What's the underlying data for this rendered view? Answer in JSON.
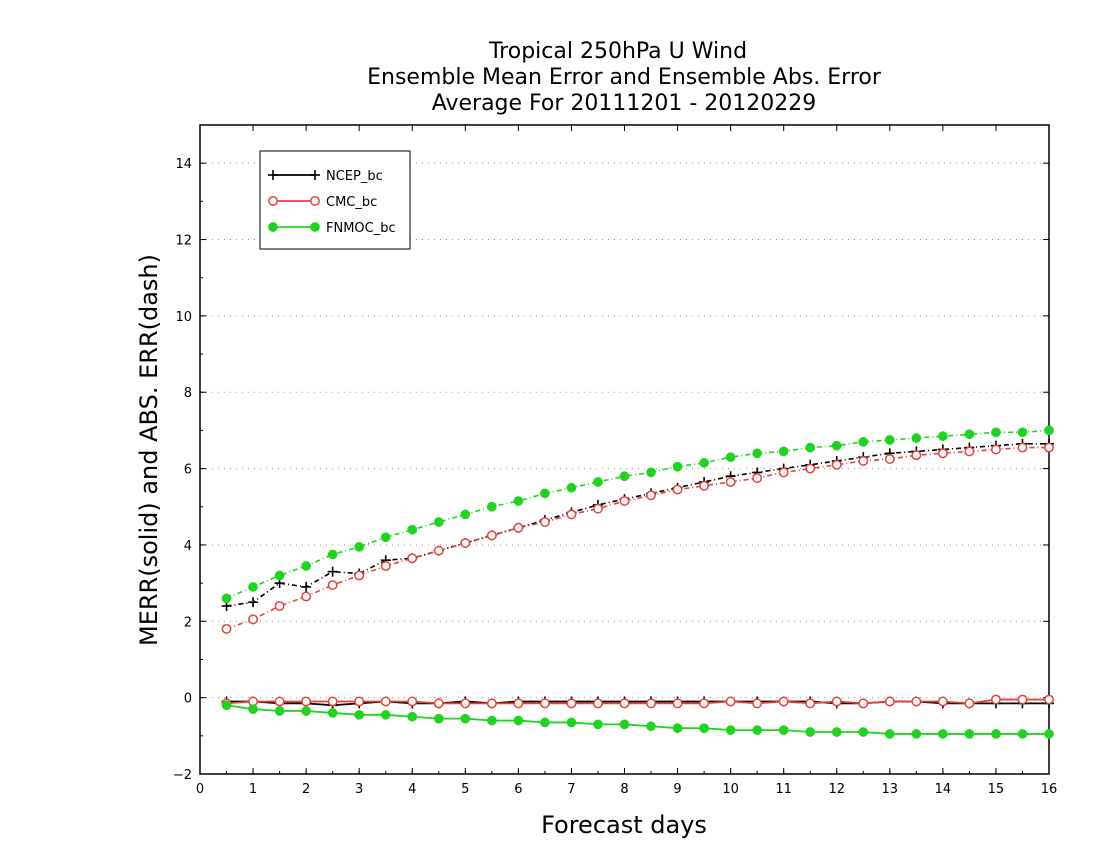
{
  "chart_data": {
    "type": "line",
    "title_lines": [
      "Tropical 250hPa U Wind",
      "Ensemble Mean Error and Ensemble Abs. Error",
      "Average For 20111201 - 20120229"
    ],
    "xlabel": "Forecast days",
    "ylabel": "MERR(solid) and ABS. ERR(dash)",
    "xlim": [
      0,
      16
    ],
    "ylim": [
      -2,
      15
    ],
    "xticks": [
      "0",
      "1",
      "2",
      "3",
      "4",
      "5",
      "6",
      "7",
      "8",
      "9",
      "10",
      "11",
      "12",
      "13",
      "14",
      "15",
      "16"
    ],
    "yticks": [
      "−2",
      "0",
      "2",
      "4",
      "6",
      "8",
      "10",
      "12",
      "14"
    ],
    "grid": "horizontal dotted",
    "legend_position": "top-left",
    "x": [
      0.5,
      1,
      1.5,
      2,
      2.5,
      3,
      3.5,
      4,
      4.5,
      5,
      5.5,
      6,
      6.5,
      7,
      7.5,
      8,
      8.5,
      9,
      9.5,
      10,
      10.5,
      11,
      11.5,
      12,
      12.5,
      13,
      13.5,
      14,
      14.5,
      15,
      15.5,
      16
    ],
    "series": [
      {
        "name": "NCEP_bc",
        "color": "#000000",
        "marker": "plus",
        "merr": [
          -0.1,
          -0.1,
          -0.15,
          -0.15,
          -0.2,
          -0.15,
          -0.1,
          -0.15,
          -0.15,
          -0.1,
          -0.15,
          -0.1,
          -0.1,
          -0.1,
          -0.1,
          -0.1,
          -0.1,
          -0.1,
          -0.1,
          -0.1,
          -0.1,
          -0.1,
          -0.1,
          -0.15,
          -0.15,
          -0.1,
          -0.1,
          -0.15,
          -0.15,
          -0.15,
          -0.15,
          -0.15
        ],
        "abs_err": [
          2.4,
          2.5,
          3.0,
          2.9,
          3.3,
          3.25,
          3.6,
          3.65,
          3.85,
          4.05,
          4.25,
          4.45,
          4.65,
          4.85,
          5.05,
          5.2,
          5.35,
          5.5,
          5.65,
          5.8,
          5.9,
          6.0,
          6.1,
          6.2,
          6.3,
          6.4,
          6.45,
          6.5,
          6.55,
          6.6,
          6.65,
          6.65
        ]
      },
      {
        "name": "CMC_bc",
        "color": "#e8403a",
        "marker": "open-circle",
        "merr": [
          -0.15,
          -0.1,
          -0.1,
          -0.1,
          -0.1,
          -0.1,
          -0.1,
          -0.1,
          -0.15,
          -0.15,
          -0.15,
          -0.15,
          -0.15,
          -0.15,
          -0.15,
          -0.15,
          -0.15,
          -0.15,
          -0.15,
          -0.1,
          -0.15,
          -0.1,
          -0.15,
          -0.1,
          -0.15,
          -0.1,
          -0.1,
          -0.1,
          -0.15,
          -0.05,
          -0.05,
          -0.05
        ],
        "abs_err": [
          1.8,
          2.05,
          2.4,
          2.65,
          2.95,
          3.2,
          3.45,
          3.65,
          3.85,
          4.05,
          4.25,
          4.45,
          4.6,
          4.8,
          4.95,
          5.15,
          5.3,
          5.45,
          5.55,
          5.65,
          5.75,
          5.9,
          6.0,
          6.1,
          6.2,
          6.25,
          6.35,
          6.4,
          6.45,
          6.5,
          6.55,
          6.55
        ]
      },
      {
        "name": "FNMOC_bc",
        "color": "#1ed41e",
        "marker": "filled-circle",
        "merr": [
          -0.2,
          -0.3,
          -0.35,
          -0.35,
          -0.4,
          -0.45,
          -0.45,
          -0.5,
          -0.55,
          -0.55,
          -0.6,
          -0.6,
          -0.65,
          -0.65,
          -0.7,
          -0.7,
          -0.75,
          -0.8,
          -0.8,
          -0.85,
          -0.85,
          -0.85,
          -0.9,
          -0.9,
          -0.9,
          -0.95,
          -0.95,
          -0.95,
          -0.95,
          -0.95,
          -0.95,
          -0.95
        ],
        "abs_err": [
          2.6,
          2.9,
          3.2,
          3.45,
          3.75,
          3.95,
          4.2,
          4.4,
          4.6,
          4.8,
          5.0,
          5.15,
          5.35,
          5.5,
          5.65,
          5.8,
          5.9,
          6.05,
          6.15,
          6.3,
          6.4,
          6.45,
          6.55,
          6.6,
          6.7,
          6.75,
          6.8,
          6.85,
          6.9,
          6.95,
          6.95,
          7.0
        ]
      }
    ]
  }
}
